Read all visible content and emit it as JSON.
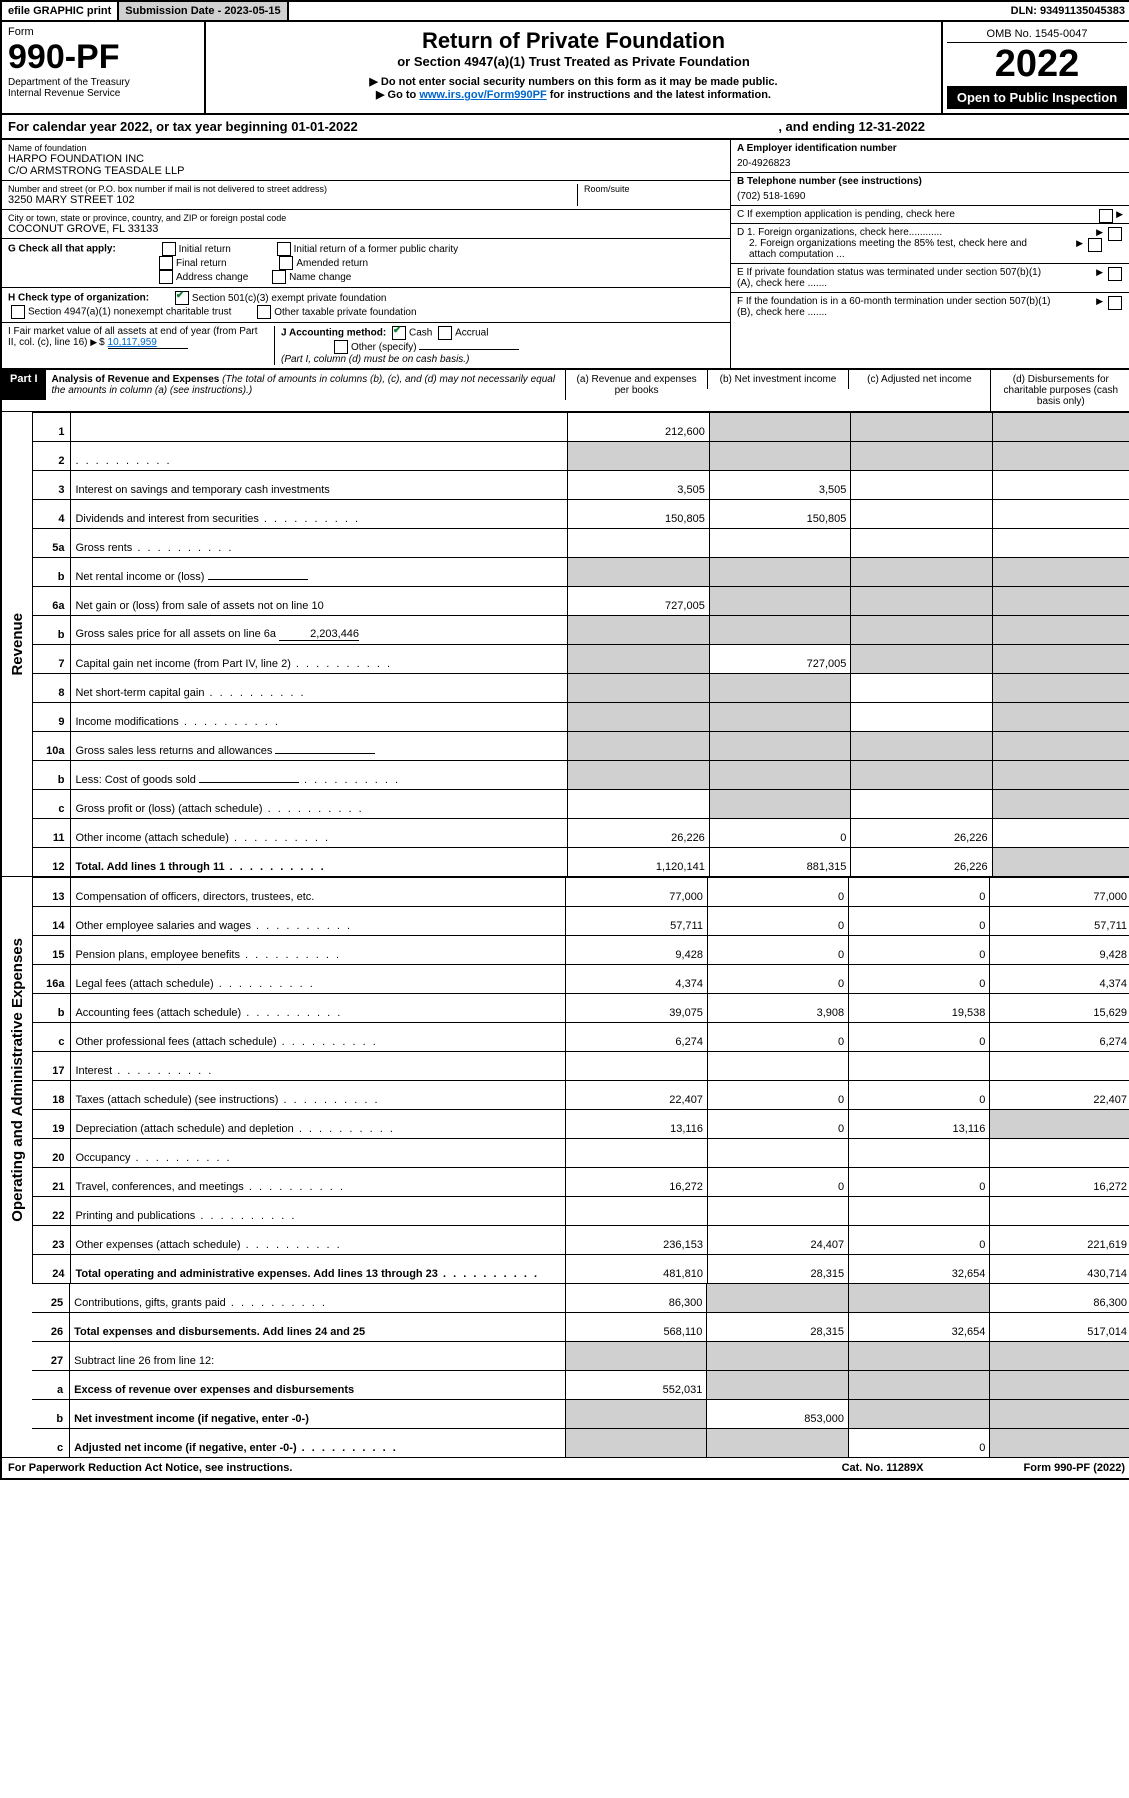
{
  "header": {
    "efile": "efile GRAPHIC print",
    "submission_label": "Submission Date - 2023-05-15",
    "dln": "DLN: 93491135045383",
    "form_word": "Form",
    "form_no": "990-PF",
    "dept": "Department of the Treasury",
    "irs": "Internal Revenue Service",
    "title": "Return of Private Foundation",
    "subtitle": "or Section 4947(a)(1) Trust Treated as Private Foundation",
    "note1": "▶ Do not enter social security numbers on this form as it may be made public.",
    "note2_pre": "▶ Go to ",
    "note2_link": "www.irs.gov/Form990PF",
    "note2_post": " for instructions and the latest information.",
    "omb": "OMB No. 1545-0047",
    "year": "2022",
    "open": "Open to Public Inspection"
  },
  "calyear": {
    "pre": "For calendar year 2022, or tax year beginning 01-01-2022",
    "mid": ", and ending 12-31-2022"
  },
  "ident": {
    "name_lbl": "Name of foundation",
    "name1": "HARPO FOUNDATION INC",
    "name2": "C/O ARMSTRONG TEASDALE LLP",
    "addr_lbl": "Number and street (or P.O. box number if mail is not delivered to street address)",
    "addr": "3250 MARY STREET 102",
    "room_lbl": "Room/suite",
    "city_lbl": "City or town, state or province, country, and ZIP or foreign postal code",
    "city": "COCONUT GROVE, FL  33133",
    "A_lbl": "A Employer identification number",
    "A_val": "20-4926823",
    "B_lbl": "B Telephone number (see instructions)",
    "B_val": "(702) 518-1690",
    "C_lbl": "C If exemption application is pending, check here",
    "D1": "D 1. Foreign organizations, check here............",
    "D2": "2. Foreign organizations meeting the 85% test, check here and attach computation ...",
    "E": "E  If private foundation status was terminated under section 507(b)(1)(A), check here .......",
    "F": "F  If the foundation is in a 60-month termination under section 507(b)(1)(B), check here .......",
    "G_lbl": "G Check all that apply:",
    "G_opts": [
      "Initial return",
      "Final return",
      "Address change",
      "Initial return of a former public charity",
      "Amended return",
      "Name change"
    ],
    "H_lbl": "H Check type of organization:",
    "H1": "Section 501(c)(3) exempt private foundation",
    "H2": "Section 4947(a)(1) nonexempt charitable trust",
    "H3": "Other taxable private foundation",
    "I_lbl": "I Fair market value of all assets at end of year (from Part II, col. (c), line 16)",
    "I_val": "10,117,959",
    "J_lbl": "J Accounting method:",
    "J_cash": "Cash",
    "J_accrual": "Accrual",
    "J_other": "Other (specify)",
    "J_note": "(Part I, column (d) must be on cash basis.)"
  },
  "part1": {
    "label": "Part I",
    "title": "Analysis of Revenue and Expenses",
    "note": " (The total of amounts in columns (b), (c), and (d) may not necessarily equal the amounts in column (a) (see instructions).)",
    "cols": {
      "a": "(a)   Revenue and expenses per books",
      "b": "(b)   Net investment income",
      "c": "(c)  Adjusted net income",
      "d": "(d)  Disbursements for charitable purposes (cash basis only)"
    }
  },
  "sections": {
    "revenue": "Revenue",
    "expenses": "Operating and Administrative Expenses"
  },
  "rows": [
    {
      "n": "1",
      "d": "",
      "a": "212,600",
      "b": "",
      "c": "",
      "cg": true,
      "dg": true,
      "bg": true
    },
    {
      "n": "2",
      "d": "",
      "dots": true,
      "a": "",
      "b": "",
      "c": "",
      "ag": true,
      "bg": true,
      "cg": true,
      "dg": true
    },
    {
      "n": "3",
      "d": "Interest on savings and temporary cash investments",
      "a": "3,505",
      "b": "3,505"
    },
    {
      "n": "4",
      "d": "Dividends and interest from securities",
      "dots": true,
      "a": "150,805",
      "b": "150,805"
    },
    {
      "n": "5a",
      "d": "Gross rents",
      "dots": true
    },
    {
      "n": "b",
      "d": "Net rental income or (loss)",
      "inline": true,
      "ag": true,
      "bg": true,
      "cg": true,
      "dg": true
    },
    {
      "n": "6a",
      "d": "Net gain or (loss) from sale of assets not on line 10",
      "a": "727,005",
      "bg": true,
      "cg": true,
      "dg": true
    },
    {
      "n": "b",
      "d": "Gross sales price for all assets on line 6a",
      "inline_val": "2,203,446",
      "ag": true,
      "bg": true,
      "cg": true,
      "dg": true
    },
    {
      "n": "7",
      "d": "Capital gain net income (from Part IV, line 2)",
      "dots": true,
      "b": "727,005",
      "ag": true,
      "cg": true,
      "dg": true
    },
    {
      "n": "8",
      "d": "Net short-term capital gain",
      "dots": true,
      "ag": true,
      "bg": true,
      "dg": true
    },
    {
      "n": "9",
      "d": "Income modifications",
      "dots": true,
      "ag": true,
      "bg": true,
      "dg": true
    },
    {
      "n": "10a",
      "d": "Gross sales less returns and allowances",
      "inline": true,
      "ag": true,
      "bg": true,
      "cg": true,
      "dg": true
    },
    {
      "n": "b",
      "d": "Less: Cost of goods sold",
      "dots": true,
      "inline": true,
      "ag": true,
      "bg": true,
      "cg": true,
      "dg": true
    },
    {
      "n": "c",
      "d": "Gross profit or (loss) (attach schedule)",
      "dots": true,
      "bg": true,
      "dg": true
    },
    {
      "n": "11",
      "d": "Other income (attach schedule)",
      "dots": true,
      "a": "26,226",
      "b": "0",
      "c": "26,226"
    },
    {
      "n": "12",
      "d": "Total. Add lines 1 through 11",
      "bold": true,
      "dots": true,
      "a": "1,120,141",
      "b": "881,315",
      "c": "26,226",
      "dg": true
    },
    {
      "n": "13",
      "d": "Compensation of officers, directors, trustees, etc.",
      "a": "77,000",
      "b": "0",
      "c": "0",
      "dd": "77,000"
    },
    {
      "n": "14",
      "d": "Other employee salaries and wages",
      "dots": true,
      "a": "57,711",
      "b": "0",
      "c": "0",
      "dd": "57,711"
    },
    {
      "n": "15",
      "d": "Pension plans, employee benefits",
      "dots": true,
      "a": "9,428",
      "b": "0",
      "c": "0",
      "dd": "9,428"
    },
    {
      "n": "16a",
      "d": "Legal fees (attach schedule)",
      "dots": true,
      "a": "4,374",
      "b": "0",
      "c": "0",
      "dd": "4,374"
    },
    {
      "n": "b",
      "d": "Accounting fees (attach schedule)",
      "dots": true,
      "a": "39,075",
      "b": "3,908",
      "c": "19,538",
      "dd": "15,629"
    },
    {
      "n": "c",
      "d": "Other professional fees (attach schedule)",
      "dots": true,
      "a": "6,274",
      "b": "0",
      "c": "0",
      "dd": "6,274"
    },
    {
      "n": "17",
      "d": "Interest",
      "dots": true
    },
    {
      "n": "18",
      "d": "Taxes (attach schedule) (see instructions)",
      "dots": true,
      "a": "22,407",
      "b": "0",
      "c": "0",
      "dd": "22,407"
    },
    {
      "n": "19",
      "d": "Depreciation (attach schedule) and depletion",
      "dots": true,
      "a": "13,116",
      "b": "0",
      "c": "13,116",
      "dg": true
    },
    {
      "n": "20",
      "d": "Occupancy",
      "dots": true
    },
    {
      "n": "21",
      "d": "Travel, conferences, and meetings",
      "dots": true,
      "a": "16,272",
      "b": "0",
      "c": "0",
      "dd": "16,272"
    },
    {
      "n": "22",
      "d": "Printing and publications",
      "dots": true
    },
    {
      "n": "23",
      "d": "Other expenses (attach schedule)",
      "dots": true,
      "a": "236,153",
      "b": "24,407",
      "c": "0",
      "dd": "221,619"
    },
    {
      "n": "24",
      "d": "Total operating and administrative expenses. Add lines 13 through 23",
      "bold": true,
      "dots": true,
      "a": "481,810",
      "b": "28,315",
      "c": "32,654",
      "dd": "430,714"
    },
    {
      "n": "25",
      "d": "Contributions, gifts, grants paid",
      "dots": true,
      "a": "86,300",
      "bg": true,
      "cg": true,
      "dd": "86,300"
    },
    {
      "n": "26",
      "d": "Total expenses and disbursements. Add lines 24 and 25",
      "bold": true,
      "a": "568,110",
      "b": "28,315",
      "c": "32,654",
      "dd": "517,014"
    },
    {
      "n": "27",
      "d": "Subtract line 26 from line 12:",
      "ag": true,
      "bg": true,
      "cg": true,
      "dg": true
    },
    {
      "n": "a",
      "d": "Excess of revenue over expenses and disbursements",
      "bold": true,
      "a": "552,031",
      "bg": true,
      "cg": true,
      "dg": true
    },
    {
      "n": "b",
      "d": "Net investment income (if negative, enter -0-)",
      "bold": true,
      "ag": true,
      "b": "853,000",
      "cg": true,
      "dg": true
    },
    {
      "n": "c",
      "d": "Adjusted net income (if negative, enter -0-)",
      "bold": true,
      "dots": true,
      "ag": true,
      "bg": true,
      "c": "0",
      "dg": true
    }
  ],
  "footer": {
    "pra": "For Paperwork Reduction Act Notice, see instructions.",
    "cat": "Cat. No. 11289X",
    "form": "Form 990-PF (2022)"
  }
}
